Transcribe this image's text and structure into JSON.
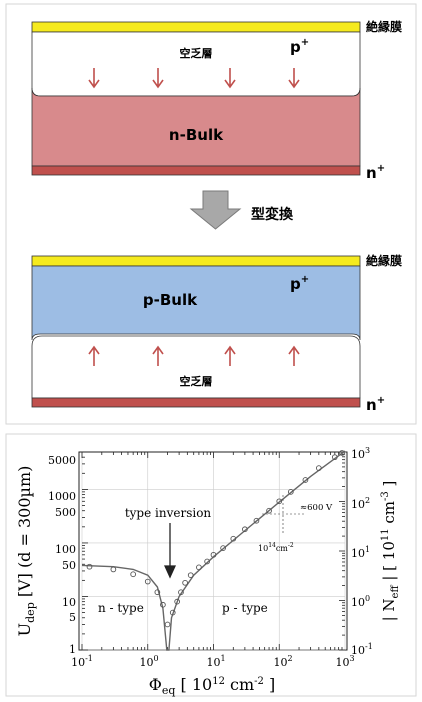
{
  "diagram": {
    "top_panel": {
      "insulator_label": "絶縁膜",
      "p_plus_label": "p",
      "p_plus_sup": "+",
      "depletion_label": "空乏層",
      "bulk_label": "n-Bulk",
      "n_plus_label": "n",
      "n_plus_sup": "+"
    },
    "conversion_label": "型変換",
    "bottom_panel": {
      "insulator_label": "絶縁膜",
      "p_plus_label": "p",
      "p_plus_sup": "+",
      "bulk_label": "p-Bulk",
      "depletion_label": "空乏層",
      "n_plus_label": "n",
      "n_plus_sup": "+"
    },
    "colors": {
      "insulator": "#f5ea1e",
      "pad": "#5a8cc7",
      "n_bulk": "#d88a8c",
      "p_bulk": "#9dbde4",
      "n_plus": "#c0504d",
      "arrow": "#c0504d",
      "conversion_arrow": "#a0a0a0"
    }
  },
  "plot": {
    "type_inversion_label": "type inversion",
    "n_type_label": "n - type",
    "p_type_label": "p - type",
    "annotation_voltage": "≈600 V",
    "annotation_fluence_base": "10",
    "annotation_fluence_exp": "14",
    "annotation_fluence_unit": "cm",
    "annotation_fluence_unit_exp": "-2",
    "left_axis_label": "U",
    "left_axis_sub": "dep",
    "left_axis_rest": " [V]  (d = 300µm)",
    "right_axis_label": "| N",
    "right_axis_sub": "eff",
    "right_axis_rest": " |  [ 10",
    "right_axis_exp": "11",
    "right_axis_unit": " cm",
    "right_axis_unit_exp": "-3",
    "right_axis_end": " ]",
    "x_axis_label": "Φ",
    "x_axis_sub": "eq",
    "x_axis_rest": "  [ 10",
    "x_axis_exp": "12",
    "x_axis_unit": " cm",
    "x_axis_unit_exp": "-2",
    "x_axis_end": " ]",
    "left_ticks": [
      "5000",
      "1000",
      "500",
      "100",
      "50",
      "10",
      "5",
      "1"
    ],
    "right_ticks": [
      {
        "base": "10",
        "exp": "3"
      },
      {
        "base": "10",
        "exp": "2"
      },
      {
        "base": "10",
        "exp": "1"
      },
      {
        "base": "10",
        "exp": "0"
      },
      {
        "base": "10",
        "exp": "-1"
      }
    ],
    "x_ticks": [
      {
        "base": "10",
        "exp": "-1"
      },
      {
        "base": "10",
        "exp": "0"
      },
      {
        "base": "10",
        "exp": "1"
      },
      {
        "base": "10",
        "exp": "2"
      },
      {
        "base": "10",
        "exp": "3"
      }
    ]
  },
  "chart_data": {
    "type": "scatter",
    "x_scale": "log",
    "y_scale": "log",
    "xlim": [
      0.1,
      1000
    ],
    "ylim_left": [
      1,
      5000
    ],
    "ylim_right": [
      0.1,
      1000
    ],
    "series": [
      {
        "values_xy": [
          [
            0.13,
            36
          ],
          [
            0.3,
            32
          ],
          [
            0.6,
            26
          ],
          [
            1.0,
            19
          ],
          [
            1.4,
            12
          ],
          [
            1.7,
            7
          ],
          [
            2.0,
            3
          ],
          [
            2.4,
            5
          ],
          [
            2.8,
            8
          ],
          [
            3.2,
            12
          ],
          [
            3.7,
            18
          ],
          [
            4.5,
            25
          ],
          [
            6,
            35
          ],
          [
            8,
            45
          ],
          [
            10,
            60
          ],
          [
            14,
            80
          ],
          [
            20,
            120
          ],
          [
            30,
            180
          ],
          [
            45,
            260
          ],
          [
            70,
            400
          ],
          [
            100,
            600
          ],
          [
            150,
            900
          ],
          [
            250,
            1500
          ],
          [
            400,
            2500
          ],
          [
            700,
            4000
          ],
          [
            900,
            4800
          ]
        ]
      },
      {
        "values_xy": [
          [
            0.1,
            38
          ],
          [
            0.3,
            36
          ],
          [
            0.6,
            32
          ],
          [
            1.0,
            25
          ],
          [
            1.4,
            15
          ],
          [
            1.7,
            6
          ],
          [
            1.95,
            1
          ],
          [
            2.1,
            1
          ],
          [
            2.3,
            4
          ],
          [
            3,
            10
          ],
          [
            5,
            25
          ],
          [
            10,
            55
          ],
          [
            30,
            170
          ],
          [
            100,
            580
          ],
          [
            300,
            1750
          ],
          [
            1000,
            5200
          ]
        ]
      }
    ],
    "annotations": [
      "type inversion",
      "n - type",
      "p - type",
      "≈600 V",
      "10^14 cm^-2"
    ]
  }
}
